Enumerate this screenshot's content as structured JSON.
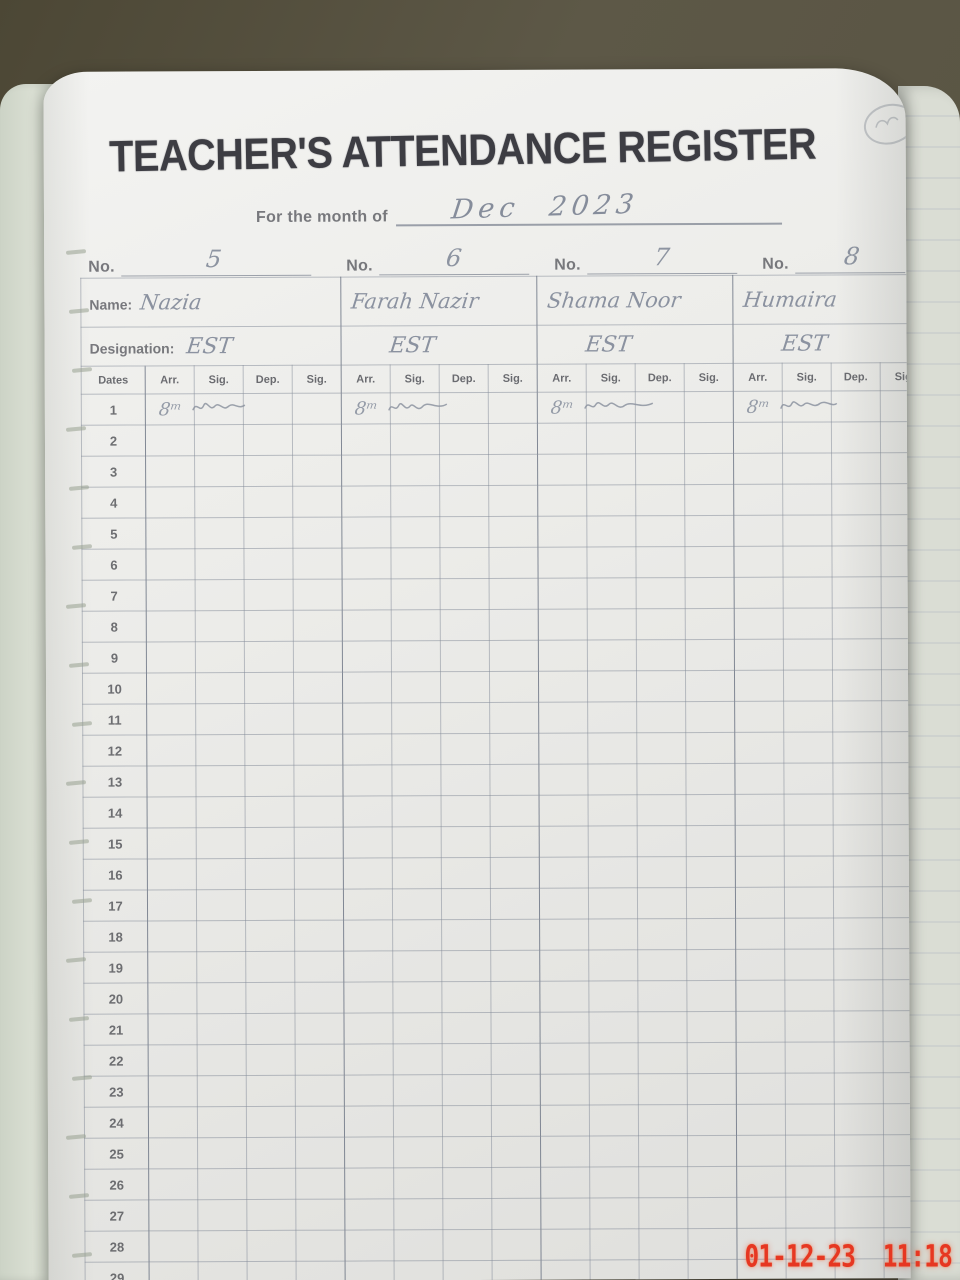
{
  "photo": {
    "timestamp": "01-12-23  11:18"
  },
  "register": {
    "title": "TEACHER'S ATTENDANCE REGISTER",
    "month": {
      "label": "For the month of",
      "value": "Dec 2023"
    },
    "labels": {
      "no": "No.",
      "name": "Name:",
      "designation": "Designation:",
      "dates": "Dates"
    },
    "sub_columns": [
      "Arr.",
      "Sig.",
      "Dep.",
      "Sig."
    ],
    "teachers": [
      {
        "no": "5",
        "name": "Nazia",
        "designation": "EST",
        "day1": {
          "arr": "8ᵐ",
          "sig": "scribble"
        }
      },
      {
        "no": "6",
        "name": "Farah Nazir",
        "designation": "EST",
        "day1": {
          "arr": "8ᵐ",
          "sig": "scribble"
        }
      },
      {
        "no": "7",
        "name": "Shama Noor",
        "designation": "EST",
        "day1": {
          "arr": "8ᵐ",
          "sig": "scribble"
        }
      },
      {
        "no": "8",
        "name": "Humaira",
        "designation": "EST",
        "day1": {
          "arr": "8ᵐ",
          "sig": "scribble"
        }
      }
    ],
    "date_rows": [
      "1",
      "2",
      "3",
      "4",
      "5",
      "6",
      "7",
      "8",
      "9",
      "10",
      "11",
      "12",
      "13",
      "14",
      "15",
      "16",
      "17",
      "18",
      "19",
      "20",
      "21",
      "22",
      "23",
      "24",
      "25",
      "26",
      "27",
      "28",
      "29"
    ]
  }
}
